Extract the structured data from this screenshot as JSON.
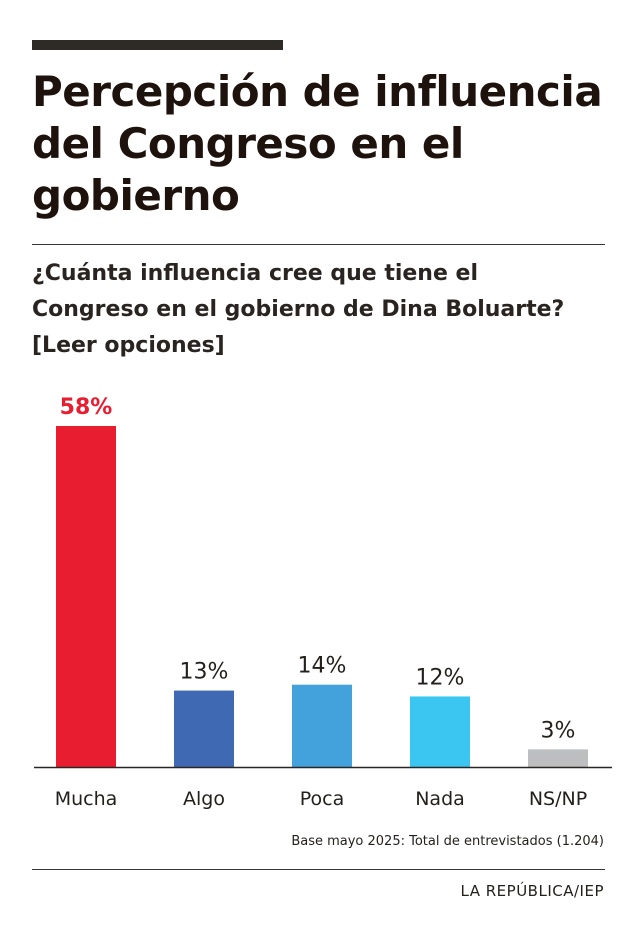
{
  "header": {
    "title_lines": [
      "Percepción de influencia",
      "del Congreso en el",
      "gobierno"
    ],
    "question_lines": [
      "¿Cuánta influencia cree que tiene el",
      "Congreso en el gobierno de Dina Boluarte?",
      "[Leer opciones]"
    ]
  },
  "chart_data": {
    "type": "bar",
    "categories": [
      "Mucha",
      "Algo",
      "Poca",
      "Nada",
      "NS/NP"
    ],
    "values": [
      58,
      13,
      14,
      12,
      3
    ],
    "value_labels": [
      "58%",
      "13%",
      "14%",
      "12%",
      "3%"
    ],
    "unit": "%",
    "ylim": [
      0,
      58
    ],
    "grid": false,
    "legend": "none",
    "colors": [
      "#e81e30",
      "#3f69b2",
      "#43a1dc",
      "#3ac6f0",
      "#bdbec0"
    ],
    "highlight_value_color": "#e81e30",
    "value_text_color": "#231f1c"
  },
  "footer": {
    "note": "Base mayo 2025: Total de entrevistados (1.204)",
    "source": "LA REPÚBLICA/IEP"
  }
}
